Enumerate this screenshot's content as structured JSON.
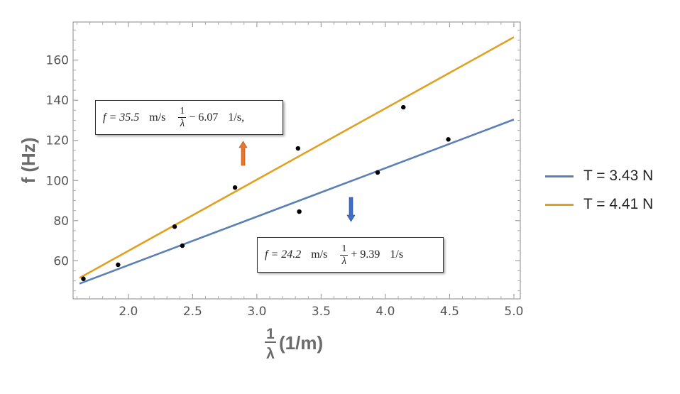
{
  "chart_data": {
    "type": "scatter",
    "xlabel_num": "1",
    "xlabel_den": "λ",
    "xlabel_unit": "(1/m)",
    "ylabel": "f (Hz)",
    "xlim": [
      1.57,
      5.05
    ],
    "ylim": [
      41,
      179
    ],
    "x_ticks": [
      "2.0",
      "2.5",
      "3.0",
      "3.5",
      "4.0",
      "4.5",
      "5.0"
    ],
    "x_tick_values": [
      2.0,
      2.5,
      3.0,
      3.5,
      4.0,
      4.5,
      5.0
    ],
    "y_ticks": [
      "60",
      "80",
      "100",
      "120",
      "140",
      "160"
    ],
    "y_tick_values": [
      60,
      80,
      100,
      120,
      140,
      160
    ],
    "points": [
      {
        "x": 1.65,
        "y": 51
      },
      {
        "x": 1.92,
        "y": 58
      },
      {
        "x": 2.36,
        "y": 77
      },
      {
        "x": 2.42,
        "y": 67.5
      },
      {
        "x": 2.83,
        "y": 96.5
      },
      {
        "x": 3.32,
        "y": 116
      },
      {
        "x": 3.33,
        "y": 84.5
      },
      {
        "x": 3.94,
        "y": 104
      },
      {
        "x": 4.14,
        "y": 136.5
      },
      {
        "x": 4.49,
        "y": 120.5
      }
    ],
    "series": [
      {
        "name": "T = 3.43 N",
        "color": "#5b80b6",
        "slope": 24.2,
        "intercept": 9.39,
        "x_range": [
          1.62,
          5.0
        ]
      },
      {
        "name": "T = 4.41 N",
        "color": "#e0a020",
        "slope": 35.5,
        "intercept": -6.07,
        "x_range": [
          1.62,
          5.0
        ]
      }
    ],
    "annotations": [
      {
        "id": "eq-orange",
        "f": "f = 35.5",
        "unit1": "m/s",
        "frac_num": "1",
        "frac_den": "λ",
        "op": "− 6.07",
        "unit2": "1/s,"
      },
      {
        "id": "eq-blue",
        "f": "f = 24.2",
        "unit1": "m/s",
        "frac_num": "1",
        "frac_den": "λ",
        "op": "+ 9.39",
        "unit2": "1/s"
      }
    ],
    "arrows": [
      {
        "direction": "up",
        "color": "#e8772e"
      },
      {
        "direction": "down",
        "color": "#3f6fc6"
      }
    ],
    "grid": false,
    "legend_placement": "right"
  }
}
